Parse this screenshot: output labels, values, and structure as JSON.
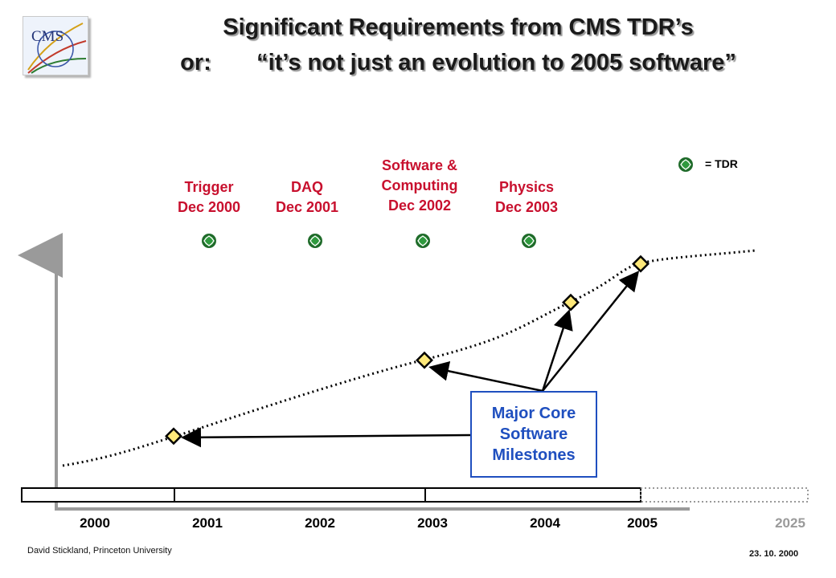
{
  "header": {
    "title": "Significant Requirements from CMS TDR’s",
    "subtitle_prefix": "or:",
    "subtitle_quote": "“it’s not just an evolution to 2005 software”",
    "logo_text": "CMS"
  },
  "legend": {
    "label": "= TDR",
    "icon": "tdr-marker-icon"
  },
  "tdrs": [
    {
      "name": "Trigger",
      "date": "Dec 2000"
    },
    {
      "name": "DAQ",
      "date": "Dec 2001"
    },
    {
      "name": "Software &",
      "name2": "Computing",
      "date": "Dec 2002"
    },
    {
      "name": "Physics",
      "date": "Dec 2003"
    }
  ],
  "milestone_box": {
    "line1": "Major Core",
    "line2": "Software",
    "line3": "Milestones"
  },
  "timeline": {
    "years": [
      "2000",
      "2001",
      "2002",
      "2003",
      "2004",
      "2005"
    ],
    "far_year": "2025"
  },
  "footer": {
    "author": "David Stickland,  Princeton University",
    "date": "23. 10. 2000"
  },
  "colors": {
    "tdr_text": "#c8102e",
    "milestone_blue": "#1f4fbf",
    "tdr_marker_fill": "#1f6b2a",
    "milestone_diamond_fill": "#ffe97a"
  }
}
